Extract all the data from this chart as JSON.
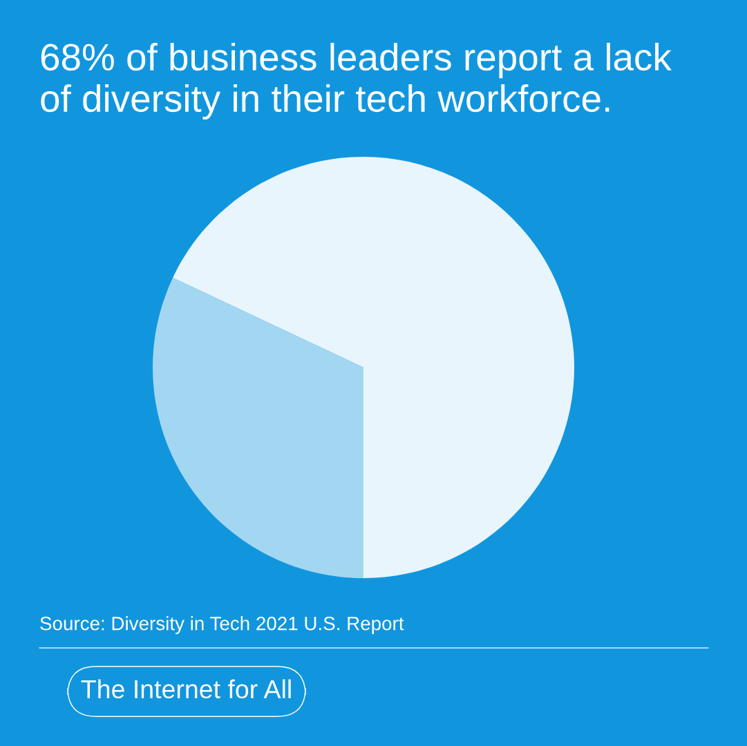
{
  "chart_data": {
    "type": "pie",
    "title": "68% of business leaders report a lack of diversity in their tech workforce.",
    "categories": [
      null,
      null
    ],
    "values": [
      68,
      32
    ],
    "colors": [
      "#e8f5fc",
      "#a3d7f1"
    ],
    "annotations": [
      "Source: Diversity in Tech 2021 U.S. Report",
      "The Internet for All"
    ]
  }
}
